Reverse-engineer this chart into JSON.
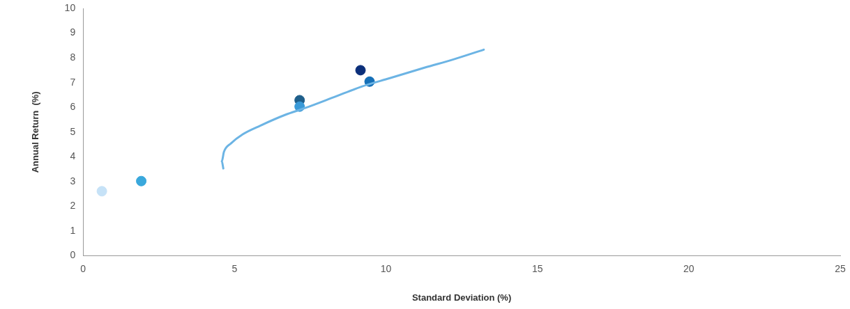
{
  "chart_data": {
    "type": "scatter",
    "xlabel": "Standard Deviation (%)",
    "ylabel": "Annual Return  (%)",
    "xlim": [
      0,
      25
    ],
    "xticks": [
      0,
      5,
      10,
      15,
      20,
      25
    ],
    "ylim": [
      0,
      10
    ],
    "yticks": [
      0,
      1,
      2,
      3,
      4,
      5,
      6,
      7,
      8,
      9,
      10
    ],
    "grid": false,
    "legend": false,
    "series": [
      {
        "type": "line",
        "color": "#6cb4e4",
        "line_style": "solid",
        "x": [
          4.63,
          4.58,
          4.65,
          4.88,
          5.27,
          5.85,
          6.66,
          7.35,
          8.28,
          9.2,
          10.13,
          11.29,
          12.21,
          13.23
        ],
        "values": [
          3.53,
          3.82,
          4.2,
          4.54,
          4.91,
          5.26,
          5.69,
          5.98,
          6.41,
          6.84,
          7.18,
          7.61,
          7.93,
          8.33
        ]
      },
      {
        "marker": "circle",
        "x": [
          0.62,
          1.92,
          7.15,
          7.15,
          9.16,
          9.46
        ],
        "values": [
          2.61,
          3.02,
          6.29,
          6.03,
          7.5,
          7.04
        ],
        "colors": [
          "#c6e2f7",
          "#3aa8dc",
          "#1f5f8b",
          "#3a9ad8",
          "#0b2f7a",
          "#1570b8"
        ]
      }
    ]
  }
}
